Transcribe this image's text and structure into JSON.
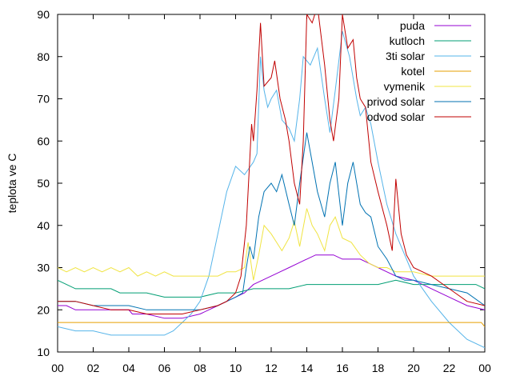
{
  "chart_data": {
    "type": "line",
    "ylabel": "teplota ve C",
    "xlabel": "",
    "xlim": [
      0,
      24
    ],
    "ylim": [
      10,
      90
    ],
    "x_ticks": [
      "00",
      "02",
      "04",
      "06",
      "08",
      "10",
      "12",
      "14",
      "16",
      "18",
      "20",
      "22",
      "00"
    ],
    "y_ticks": [
      "10",
      "20",
      "30",
      "40",
      "50",
      "60",
      "70",
      "80",
      "90"
    ],
    "grid": false,
    "legend_position": "top-right",
    "series": [
      {
        "name": "puda",
        "color": "#9400d3",
        "points": [
          [
            0,
            21
          ],
          [
            0.5,
            21
          ],
          [
            1,
            20
          ],
          [
            2,
            20
          ],
          [
            3,
            20
          ],
          [
            4,
            20
          ],
          [
            4.2,
            19
          ],
          [
            5,
            19
          ],
          [
            6,
            18
          ],
          [
            7,
            18
          ],
          [
            8,
            19
          ],
          [
            9,
            21
          ],
          [
            9.5,
            22
          ],
          [
            10,
            23
          ],
          [
            10.5,
            24
          ],
          [
            11,
            26
          ],
          [
            11.5,
            27
          ],
          [
            12,
            28
          ],
          [
            12.5,
            29
          ],
          [
            13,
            30
          ],
          [
            13.5,
            31
          ],
          [
            14,
            32
          ],
          [
            14.5,
            33
          ],
          [
            15,
            33
          ],
          [
            15.5,
            33
          ],
          [
            16,
            32
          ],
          [
            17,
            32
          ],
          [
            17.5,
            31
          ],
          [
            18,
            30
          ],
          [
            18.5,
            29
          ],
          [
            19,
            28
          ],
          [
            20,
            27
          ],
          [
            20.5,
            26
          ],
          [
            21,
            25
          ],
          [
            22,
            23
          ],
          [
            23,
            21
          ],
          [
            24,
            20
          ]
        ]
      },
      {
        "name": "kutloch",
        "color": "#009e73",
        "points": [
          [
            0,
            27
          ],
          [
            0.5,
            26
          ],
          [
            1,
            25
          ],
          [
            2,
            25
          ],
          [
            3,
            25
          ],
          [
            3.5,
            24
          ],
          [
            5,
            24
          ],
          [
            6,
            23
          ],
          [
            7,
            23
          ],
          [
            8,
            23
          ],
          [
            9,
            24
          ],
          [
            10,
            24
          ],
          [
            11,
            25
          ],
          [
            12,
            25
          ],
          [
            13,
            25
          ],
          [
            14,
            26
          ],
          [
            15,
            26
          ],
          [
            16,
            26
          ],
          [
            17,
            26
          ],
          [
            18,
            26
          ],
          [
            19,
            27
          ],
          [
            20,
            26
          ],
          [
            21,
            26
          ],
          [
            22,
            26
          ],
          [
            23,
            26
          ],
          [
            23.5,
            26
          ],
          [
            24,
            25
          ]
        ]
      },
      {
        "name": "3ti solar",
        "color": "#56b4e9",
        "points": [
          [
            0,
            16
          ],
          [
            1,
            15
          ],
          [
            2,
            15
          ],
          [
            3,
            14
          ],
          [
            4,
            14
          ],
          [
            5,
            14
          ],
          [
            6,
            14
          ],
          [
            6.5,
            15
          ],
          [
            7,
            17
          ],
          [
            7.5,
            19
          ],
          [
            8,
            22
          ],
          [
            8.5,
            28
          ],
          [
            9,
            38
          ],
          [
            9.5,
            48
          ],
          [
            10,
            54
          ],
          [
            10.5,
            52
          ],
          [
            11,
            55
          ],
          [
            11.2,
            57
          ],
          [
            11.4,
            80
          ],
          [
            11.6,
            72
          ],
          [
            11.8,
            68
          ],
          [
            12,
            70
          ],
          [
            12.3,
            72
          ],
          [
            12.6,
            65
          ],
          [
            13,
            63
          ],
          [
            13.3,
            60
          ],
          [
            13.6,
            70
          ],
          [
            13.8,
            80
          ],
          [
            14.2,
            78
          ],
          [
            14.6,
            82
          ],
          [
            15,
            70
          ],
          [
            15.3,
            62
          ],
          [
            15.6,
            72
          ],
          [
            16,
            86
          ],
          [
            16.4,
            80
          ],
          [
            16.8,
            70
          ],
          [
            17,
            66
          ],
          [
            17.3,
            68
          ],
          [
            17.6,
            64
          ],
          [
            18,
            55
          ],
          [
            18.5,
            45
          ],
          [
            19,
            38
          ],
          [
            19.5,
            33
          ],
          [
            20,
            28
          ],
          [
            21,
            22
          ],
          [
            22,
            17
          ],
          [
            23,
            13
          ],
          [
            24,
            11
          ]
        ]
      },
      {
        "name": "kotel",
        "color": "#e69f00",
        "points": [
          [
            0,
            17
          ],
          [
            1,
            17
          ],
          [
            2,
            17
          ],
          [
            3,
            17
          ],
          [
            4,
            17
          ],
          [
            5,
            17
          ],
          [
            6,
            17
          ],
          [
            7,
            17
          ],
          [
            8,
            17
          ],
          [
            9,
            17
          ],
          [
            10,
            17
          ],
          [
            11,
            17
          ],
          [
            12,
            17
          ],
          [
            13,
            17
          ],
          [
            14,
            17
          ],
          [
            15,
            17
          ],
          [
            16,
            17
          ],
          [
            17,
            17
          ],
          [
            18,
            17
          ],
          [
            19,
            17
          ],
          [
            20,
            17
          ],
          [
            21,
            17
          ],
          [
            22,
            17
          ],
          [
            23,
            17
          ],
          [
            23.8,
            17
          ],
          [
            24,
            16
          ]
        ]
      },
      {
        "name": "vymenik",
        "color": "#f0e442",
        "points": [
          [
            0,
            30
          ],
          [
            0.5,
            29
          ],
          [
            1,
            30
          ],
          [
            1.5,
            29
          ],
          [
            2,
            30
          ],
          [
            2.5,
            29
          ],
          [
            3,
            30
          ],
          [
            3.5,
            29
          ],
          [
            4,
            30
          ],
          [
            4.5,
            28
          ],
          [
            5,
            29
          ],
          [
            5.5,
            28
          ],
          [
            6,
            29
          ],
          [
            6.5,
            28
          ],
          [
            7,
            28
          ],
          [
            8,
            28
          ],
          [
            9,
            28
          ],
          [
            9.5,
            29
          ],
          [
            10,
            29
          ],
          [
            10.5,
            30
          ],
          [
            10.7,
            36
          ],
          [
            11,
            27
          ],
          [
            11.3,
            33
          ],
          [
            11.6,
            40
          ],
          [
            12,
            38
          ],
          [
            12.3,
            36
          ],
          [
            12.6,
            34
          ],
          [
            13,
            37
          ],
          [
            13.3,
            41
          ],
          [
            13.6,
            35
          ],
          [
            14,
            44
          ],
          [
            14.3,
            40
          ],
          [
            14.6,
            38
          ],
          [
            15,
            34
          ],
          [
            15.3,
            40
          ],
          [
            15.6,
            42
          ],
          [
            16,
            37
          ],
          [
            16.5,
            36
          ],
          [
            17,
            33
          ],
          [
            17.5,
            31
          ],
          [
            18,
            30
          ],
          [
            18.5,
            30
          ],
          [
            19,
            29
          ],
          [
            20,
            29
          ],
          [
            21,
            28
          ],
          [
            22,
            28
          ],
          [
            23,
            28
          ],
          [
            24,
            28
          ]
        ]
      },
      {
        "name": "privod solar",
        "color": "#0072b2",
        "points": [
          [
            0,
            22
          ],
          [
            1,
            22
          ],
          [
            2,
            21
          ],
          [
            3,
            21
          ],
          [
            4,
            21
          ],
          [
            5,
            20
          ],
          [
            6,
            20
          ],
          [
            7,
            20
          ],
          [
            8,
            20
          ],
          [
            9,
            21
          ],
          [
            9.5,
            22
          ],
          [
            10,
            23
          ],
          [
            10.4,
            24
          ],
          [
            10.6,
            30
          ],
          [
            10.8,
            35
          ],
          [
            11,
            32
          ],
          [
            11.3,
            42
          ],
          [
            11.6,
            48
          ],
          [
            12,
            50
          ],
          [
            12.3,
            48
          ],
          [
            12.6,
            52
          ],
          [
            13,
            45
          ],
          [
            13.3,
            40
          ],
          [
            13.6,
            50
          ],
          [
            14,
            62
          ],
          [
            14.3,
            55
          ],
          [
            14.6,
            48
          ],
          [
            15,
            42
          ],
          [
            15.3,
            50
          ],
          [
            15.6,
            55
          ],
          [
            16,
            40
          ],
          [
            16.3,
            50
          ],
          [
            16.6,
            55
          ],
          [
            17,
            45
          ],
          [
            17.3,
            43
          ],
          [
            17.6,
            42
          ],
          [
            18,
            35
          ],
          [
            18.5,
            32
          ],
          [
            19,
            28
          ],
          [
            19.5,
            27
          ],
          [
            20,
            27
          ],
          [
            21,
            26
          ],
          [
            22,
            25
          ],
          [
            23,
            24
          ],
          [
            24,
            21
          ]
        ]
      },
      {
        "name": "odvod solar",
        "color": "#c00000",
        "points": [
          [
            0,
            22
          ],
          [
            1,
            22
          ],
          [
            2,
            21
          ],
          [
            3,
            20
          ],
          [
            4,
            20
          ],
          [
            5,
            19
          ],
          [
            6,
            19
          ],
          [
            7,
            19
          ],
          [
            8,
            20
          ],
          [
            9,
            21
          ],
          [
            9.5,
            22
          ],
          [
            10,
            24
          ],
          [
            10.3,
            28
          ],
          [
            10.6,
            40
          ],
          [
            10.9,
            64
          ],
          [
            11,
            60
          ],
          [
            11.2,
            72
          ],
          [
            11.4,
            88
          ],
          [
            11.6,
            73
          ],
          [
            12,
            75
          ],
          [
            12.2,
            79
          ],
          [
            12.5,
            70
          ],
          [
            12.8,
            65
          ],
          [
            13,
            60
          ],
          [
            13.3,
            50
          ],
          [
            13.6,
            45
          ],
          [
            13.8,
            60
          ],
          [
            14,
            90
          ],
          [
            14.3,
            88
          ],
          [
            14.6,
            92
          ],
          [
            15,
            78
          ],
          [
            15.3,
            65
          ],
          [
            15.5,
            60
          ],
          [
            15.8,
            70
          ],
          [
            16,
            90
          ],
          [
            16.3,
            82
          ],
          [
            16.6,
            84
          ],
          [
            16.8,
            75
          ],
          [
            17,
            70
          ],
          [
            17.3,
            68
          ],
          [
            17.6,
            55
          ],
          [
            18,
            48
          ],
          [
            18.5,
            40
          ],
          [
            18.8,
            34
          ],
          [
            19,
            51
          ],
          [
            19.3,
            38
          ],
          [
            19.6,
            33
          ],
          [
            20,
            30
          ],
          [
            21,
            28
          ],
          [
            22,
            25
          ],
          [
            23,
            22
          ],
          [
            24,
            21
          ]
        ]
      }
    ]
  }
}
